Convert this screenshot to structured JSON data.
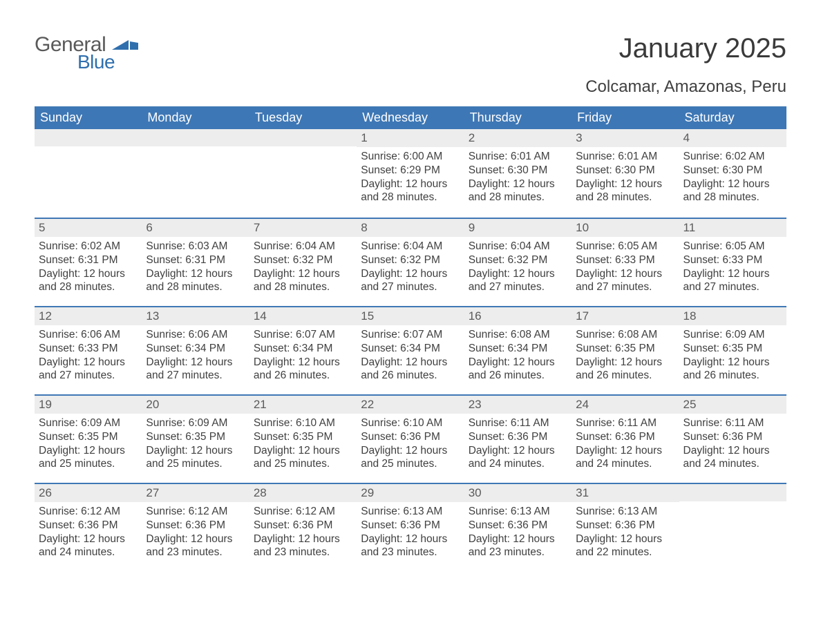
{
  "logo": {
    "word1": "General",
    "word2": "Blue"
  },
  "title": "January 2025",
  "subtitle": "Colcamar, Amazonas, Peru",
  "colors": {
    "header_bg": "#3e77b5",
    "header_text": "#ffffff",
    "daynum_bg": "#ededed",
    "body_text": "#404040",
    "week_border": "#3e77b5",
    "logo_gray": "#5a5a5a",
    "logo_blue": "#2f6fae"
  },
  "typography": {
    "title_fontsize": 40,
    "subtitle_fontsize": 24,
    "header_fontsize": 18,
    "daynum_fontsize": 17,
    "body_fontsize": 15.5
  },
  "weekdays": [
    "Sunday",
    "Monday",
    "Tuesday",
    "Wednesday",
    "Thursday",
    "Friday",
    "Saturday"
  ],
  "weeks": [
    [
      {
        "n": "",
        "sr": "",
        "ss": "",
        "dl": ""
      },
      {
        "n": "",
        "sr": "",
        "ss": "",
        "dl": ""
      },
      {
        "n": "",
        "sr": "",
        "ss": "",
        "dl": ""
      },
      {
        "n": "1",
        "sr": "Sunrise: 6:00 AM",
        "ss": "Sunset: 6:29 PM",
        "dl": "Daylight: 12 hours and 28 minutes."
      },
      {
        "n": "2",
        "sr": "Sunrise: 6:01 AM",
        "ss": "Sunset: 6:30 PM",
        "dl": "Daylight: 12 hours and 28 minutes."
      },
      {
        "n": "3",
        "sr": "Sunrise: 6:01 AM",
        "ss": "Sunset: 6:30 PM",
        "dl": "Daylight: 12 hours and 28 minutes."
      },
      {
        "n": "4",
        "sr": "Sunrise: 6:02 AM",
        "ss": "Sunset: 6:30 PM",
        "dl": "Daylight: 12 hours and 28 minutes."
      }
    ],
    [
      {
        "n": "5",
        "sr": "Sunrise: 6:02 AM",
        "ss": "Sunset: 6:31 PM",
        "dl": "Daylight: 12 hours and 28 minutes."
      },
      {
        "n": "6",
        "sr": "Sunrise: 6:03 AM",
        "ss": "Sunset: 6:31 PM",
        "dl": "Daylight: 12 hours and 28 minutes."
      },
      {
        "n": "7",
        "sr": "Sunrise: 6:04 AM",
        "ss": "Sunset: 6:32 PM",
        "dl": "Daylight: 12 hours and 28 minutes."
      },
      {
        "n": "8",
        "sr": "Sunrise: 6:04 AM",
        "ss": "Sunset: 6:32 PM",
        "dl": "Daylight: 12 hours and 27 minutes."
      },
      {
        "n": "9",
        "sr": "Sunrise: 6:04 AM",
        "ss": "Sunset: 6:32 PM",
        "dl": "Daylight: 12 hours and 27 minutes."
      },
      {
        "n": "10",
        "sr": "Sunrise: 6:05 AM",
        "ss": "Sunset: 6:33 PM",
        "dl": "Daylight: 12 hours and 27 minutes."
      },
      {
        "n": "11",
        "sr": "Sunrise: 6:05 AM",
        "ss": "Sunset: 6:33 PM",
        "dl": "Daylight: 12 hours and 27 minutes."
      }
    ],
    [
      {
        "n": "12",
        "sr": "Sunrise: 6:06 AM",
        "ss": "Sunset: 6:33 PM",
        "dl": "Daylight: 12 hours and 27 minutes."
      },
      {
        "n": "13",
        "sr": "Sunrise: 6:06 AM",
        "ss": "Sunset: 6:34 PM",
        "dl": "Daylight: 12 hours and 27 minutes."
      },
      {
        "n": "14",
        "sr": "Sunrise: 6:07 AM",
        "ss": "Sunset: 6:34 PM",
        "dl": "Daylight: 12 hours and 26 minutes."
      },
      {
        "n": "15",
        "sr": "Sunrise: 6:07 AM",
        "ss": "Sunset: 6:34 PM",
        "dl": "Daylight: 12 hours and 26 minutes."
      },
      {
        "n": "16",
        "sr": "Sunrise: 6:08 AM",
        "ss": "Sunset: 6:34 PM",
        "dl": "Daylight: 12 hours and 26 minutes."
      },
      {
        "n": "17",
        "sr": "Sunrise: 6:08 AM",
        "ss": "Sunset: 6:35 PM",
        "dl": "Daylight: 12 hours and 26 minutes."
      },
      {
        "n": "18",
        "sr": "Sunrise: 6:09 AM",
        "ss": "Sunset: 6:35 PM",
        "dl": "Daylight: 12 hours and 26 minutes."
      }
    ],
    [
      {
        "n": "19",
        "sr": "Sunrise: 6:09 AM",
        "ss": "Sunset: 6:35 PM",
        "dl": "Daylight: 12 hours and 25 minutes."
      },
      {
        "n": "20",
        "sr": "Sunrise: 6:09 AM",
        "ss": "Sunset: 6:35 PM",
        "dl": "Daylight: 12 hours and 25 minutes."
      },
      {
        "n": "21",
        "sr": "Sunrise: 6:10 AM",
        "ss": "Sunset: 6:35 PM",
        "dl": "Daylight: 12 hours and 25 minutes."
      },
      {
        "n": "22",
        "sr": "Sunrise: 6:10 AM",
        "ss": "Sunset: 6:36 PM",
        "dl": "Daylight: 12 hours and 25 minutes."
      },
      {
        "n": "23",
        "sr": "Sunrise: 6:11 AM",
        "ss": "Sunset: 6:36 PM",
        "dl": "Daylight: 12 hours and 24 minutes."
      },
      {
        "n": "24",
        "sr": "Sunrise: 6:11 AM",
        "ss": "Sunset: 6:36 PM",
        "dl": "Daylight: 12 hours and 24 minutes."
      },
      {
        "n": "25",
        "sr": "Sunrise: 6:11 AM",
        "ss": "Sunset: 6:36 PM",
        "dl": "Daylight: 12 hours and 24 minutes."
      }
    ],
    [
      {
        "n": "26",
        "sr": "Sunrise: 6:12 AM",
        "ss": "Sunset: 6:36 PM",
        "dl": "Daylight: 12 hours and 24 minutes."
      },
      {
        "n": "27",
        "sr": "Sunrise: 6:12 AM",
        "ss": "Sunset: 6:36 PM",
        "dl": "Daylight: 12 hours and 23 minutes."
      },
      {
        "n": "28",
        "sr": "Sunrise: 6:12 AM",
        "ss": "Sunset: 6:36 PM",
        "dl": "Daylight: 12 hours and 23 minutes."
      },
      {
        "n": "29",
        "sr": "Sunrise: 6:13 AM",
        "ss": "Sunset: 6:36 PM",
        "dl": "Daylight: 12 hours and 23 minutes."
      },
      {
        "n": "30",
        "sr": "Sunrise: 6:13 AM",
        "ss": "Sunset: 6:36 PM",
        "dl": "Daylight: 12 hours and 23 minutes."
      },
      {
        "n": "31",
        "sr": "Sunrise: 6:13 AM",
        "ss": "Sunset: 6:36 PM",
        "dl": "Daylight: 12 hours and 22 minutes."
      },
      {
        "n": "",
        "sr": "",
        "ss": "",
        "dl": ""
      }
    ]
  ]
}
